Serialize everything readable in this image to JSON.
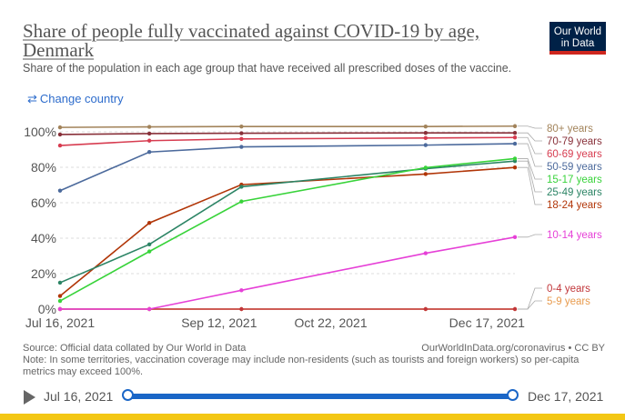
{
  "header": {
    "title": "Share of people fully vaccinated against COVID-19 by age, Denmark",
    "subtitle": "Share of the population in each age group that have received all prescribed doses of the vaccine.",
    "logo": "Our World in Data",
    "change_country": "Change country"
  },
  "footer": {
    "source": "Source: Official data collated by Our World in Data",
    "url": "OurWorldInData.org/coronavirus • CC BY",
    "note": "Note: In some territories, vaccination coverage may include non-residents (such as tourists and foreign workers) so per-capita metrics may exceed 100%."
  },
  "timeline": {
    "start": "Jul 16, 2021",
    "end": "Dec 17, 2021"
  },
  "colors": {
    "accent": "#1a66c7",
    "logo_bg": "#002147",
    "logo_bar": "#ce261e",
    "bottom_bar": "#f3c715"
  },
  "chart_data": {
    "type": "line",
    "title": "Share of people fully vaccinated against COVID-19 by age, Denmark",
    "xlabel": "",
    "ylabel": "",
    "x_domain": [
      1,
      164
    ],
    "x": [
      1,
      33,
      66,
      132,
      164
    ],
    "x_ticks": [
      {
        "label": "Jul 16, 2021",
        "day": 1
      },
      {
        "label": "Sep 12, 2021",
        "day": 58
      },
      {
        "label": "Oct 22, 2021",
        "day": 98
      },
      {
        "label": "Dec 17, 2021",
        "day": 154
      }
    ],
    "ylim": [
      0,
      100
    ],
    "y_ticks": [
      "0%",
      "20%",
      "40%",
      "60%",
      "80%",
      "100%"
    ],
    "y_tick_values": [
      0,
      20,
      40,
      60,
      80,
      100
    ],
    "grid": true,
    "series": [
      {
        "name": "80+ years",
        "color": "#a2835a",
        "x": [
          1,
          33,
          66,
          132,
          164
        ],
        "values": [
          102.5,
          102.8,
          103,
          103,
          103.2
        ]
      },
      {
        "name": "70-79 years",
        "color": "#883039",
        "x": [
          1,
          33,
          66,
          132,
          164
        ],
        "values": [
          98.5,
          99,
          99.2,
          99.4,
          99.4
        ]
      },
      {
        "name": "60-69 years",
        "color": "#d73c50",
        "x": [
          1,
          33,
          66,
          132,
          164
        ],
        "values": [
          92.3,
          95,
          96,
          96.5,
          96.8
        ]
      },
      {
        "name": "50-59 years",
        "color": "#4c6a9c",
        "x": [
          1,
          33,
          66,
          132,
          164
        ],
        "values": [
          66.8,
          88.6,
          91.5,
          92.5,
          93.3
        ]
      },
      {
        "name": "15-17 years",
        "color": "#38d33a",
        "x": [
          1,
          33,
          66,
          132,
          164
        ],
        "values": [
          4.6,
          32.5,
          60.7,
          79.8,
          84.9
        ]
      },
      {
        "name": "25-49 years",
        "color": "#2c8465",
        "x": [
          1,
          33,
          66,
          132,
          164
        ],
        "values": [
          14.9,
          36.5,
          69,
          79.2,
          83.5
        ]
      },
      {
        "name": "18-24 years",
        "color": "#b13507",
        "x": [
          1,
          33,
          66,
          132,
          164
        ],
        "values": [
          7.4,
          48.6,
          70.2,
          76.2,
          79.9
        ]
      },
      {
        "name": "10-14 years",
        "color": "#e640d7",
        "x": [
          1,
          33,
          66,
          132,
          164
        ],
        "values": [
          0,
          0,
          10.6,
          31.5,
          40.6
        ]
      },
      {
        "name": "0-4 years",
        "color": "#c1363a",
        "x": [
          1,
          33,
          66,
          132,
          164
        ],
        "values": [
          0,
          0,
          0,
          0,
          0
        ]
      },
      {
        "name": "5-9 years",
        "color": "#e89b4e",
        "x": [
          1,
          33,
          66,
          132,
          164
        ],
        "values": [
          0,
          0,
          0,
          0,
          0
        ]
      }
    ]
  }
}
